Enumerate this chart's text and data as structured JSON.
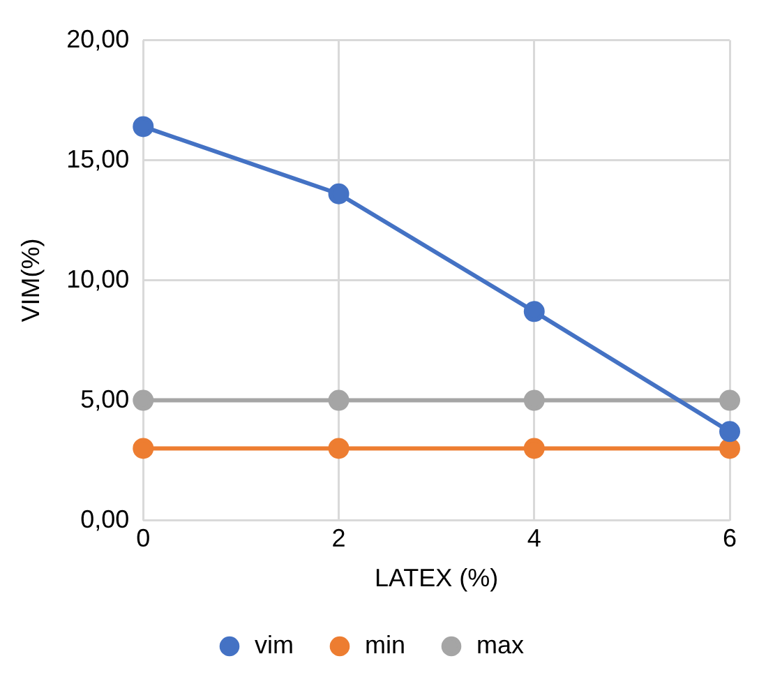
{
  "chart_data": {
    "type": "line",
    "xlabel": "LATEX (%)",
    "ylabel": "VIM(%)",
    "x": [
      0,
      2,
      4,
      6
    ],
    "series": [
      {
        "name": "vim",
        "color": "#4472c4",
        "values": [
          16.4,
          13.6,
          8.7,
          3.7
        ]
      },
      {
        "name": "min",
        "color": "#ed7d31",
        "values": [
          3,
          3,
          3,
          3
        ]
      },
      {
        "name": "max",
        "color": "#a5a5a5",
        "values": [
          5,
          5,
          5,
          5
        ]
      }
    ],
    "xlim": [
      0,
      6
    ],
    "xticks": [
      0,
      2,
      4,
      6
    ],
    "ylim": [
      0,
      20
    ],
    "yticks": [
      {
        "value": 0,
        "label": "0,00"
      },
      {
        "value": 5,
        "label": "5,00"
      },
      {
        "value": 10,
        "label": "10,00"
      },
      {
        "value": 15,
        "label": "15,00"
      },
      {
        "value": 20,
        "label": "20,00"
      }
    ],
    "grid": true,
    "legend": "bottom",
    "marker": "circle",
    "line_style": "solid"
  }
}
